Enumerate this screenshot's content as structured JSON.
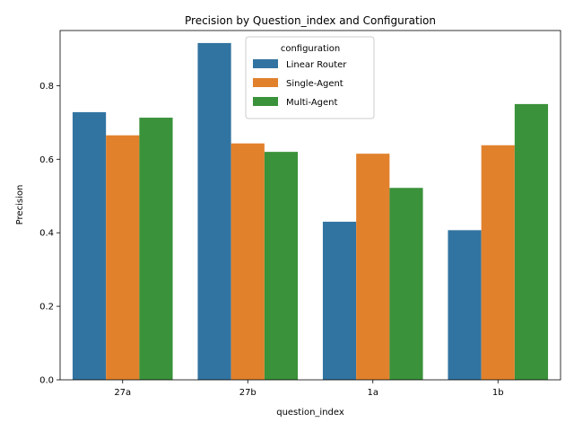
{
  "chart_data": {
    "type": "bar",
    "title": "Precision by Question_index and Configuration",
    "xlabel": "question_index",
    "ylabel": "Precision",
    "categories": [
      "27a",
      "27b",
      "1a",
      "1b"
    ],
    "ylim": [
      0,
      0.95
    ],
    "yticks": [
      0.0,
      0.2,
      0.4,
      0.6,
      0.8
    ],
    "ytick_labels": [
      "0.0",
      "0.2",
      "0.4",
      "0.6",
      "0.8"
    ],
    "grid": false,
    "legend": {
      "title": "configuration",
      "placement": "top-center"
    },
    "series": [
      {
        "name": "Linear Router",
        "color": "#3274a1",
        "values": [
          0.728,
          0.916,
          0.43,
          0.407
        ]
      },
      {
        "name": "Single-Agent",
        "color": "#e1812c",
        "values": [
          0.665,
          0.643,
          0.615,
          0.638
        ]
      },
      {
        "name": "Multi-Agent",
        "color": "#3a923a",
        "values": [
          0.713,
          0.62,
          0.522,
          0.75
        ]
      }
    ]
  }
}
